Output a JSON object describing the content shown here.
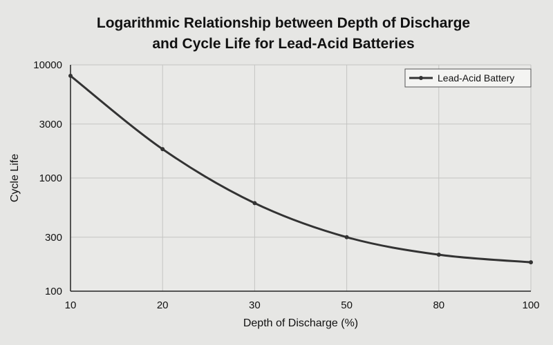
{
  "chart_data": {
    "type": "line",
    "title_lines": [
      "Logarithmic Relationship between Depth of Discharge",
      "and Cycle Life for Lead-Acid Batteries"
    ],
    "xlabel": "Depth of Discharge (%)",
    "ylabel": "Cycle Life",
    "x_tick_labels": [
      "10",
      "20",
      "30",
      "50",
      "80",
      "100"
    ],
    "y_tick_labels": [
      "10000",
      "3000",
      "1000",
      "300",
      "100"
    ],
    "y_tick_values": [
      10000,
      3000,
      1000,
      300,
      100
    ],
    "y_scale": "log",
    "ylim": [
      100,
      10000
    ],
    "grid": true,
    "legend_position": "top-right",
    "series": [
      {
        "name": "Lead-Acid Battery",
        "color": "#333333",
        "x": [
          "10",
          "20",
          "30",
          "50",
          "80",
          "100"
        ],
        "values": [
          8000,
          1800,
          600,
          300,
          210,
          180
        ]
      }
    ]
  }
}
